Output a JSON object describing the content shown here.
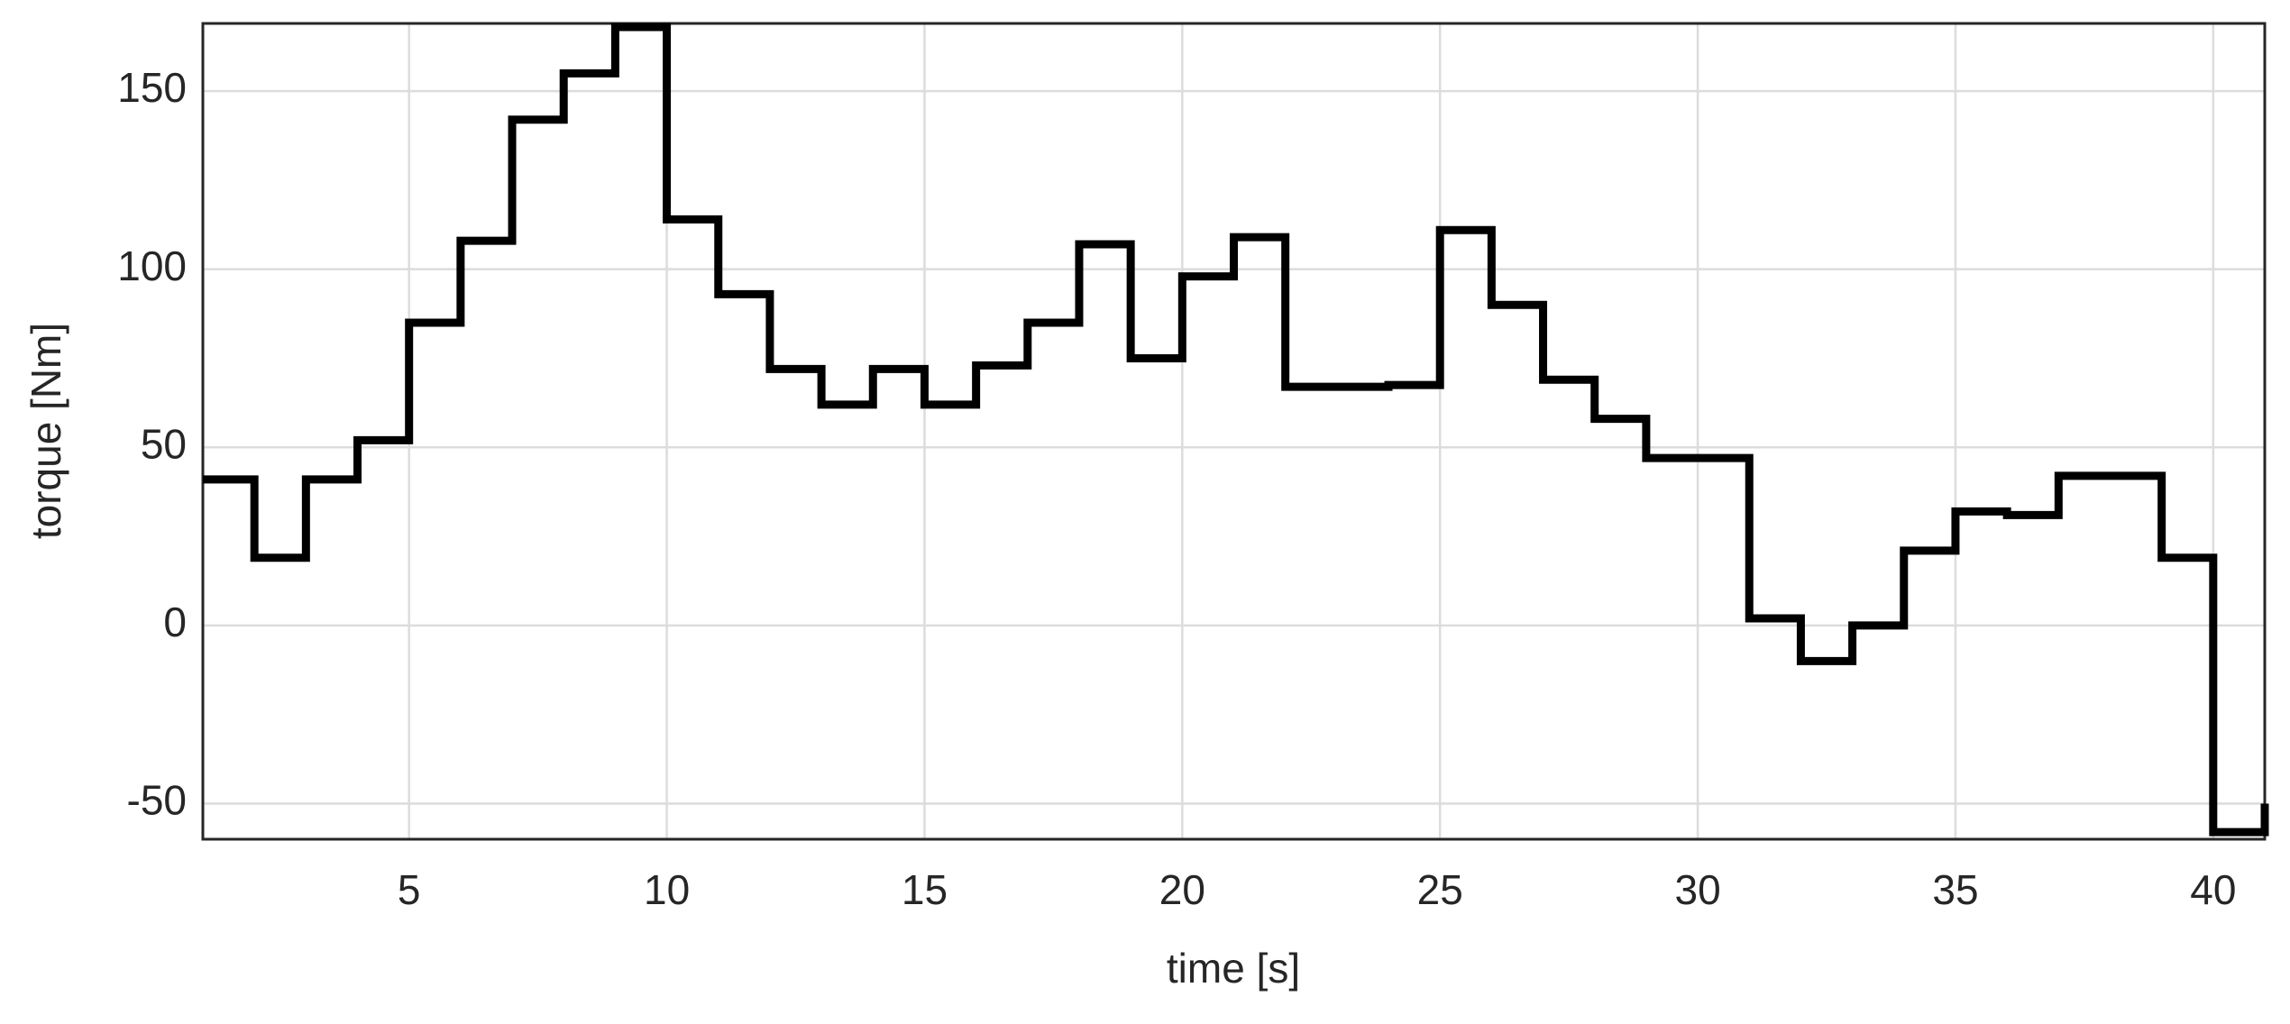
{
  "chart_data": {
    "type": "stairs",
    "xlabel": "time [s]",
    "ylabel": "torque [Nm]",
    "x": [
      1,
      2,
      3,
      4,
      5,
      6,
      7,
      8,
      9,
      10,
      11,
      12,
      13,
      14,
      15,
      16,
      17,
      18,
      19,
      20,
      21,
      22,
      23,
      24,
      25,
      26,
      27,
      28,
      29,
      30,
      31,
      32,
      33,
      34,
      35,
      36,
      37,
      38,
      39,
      40,
      41
    ],
    "series": [
      {
        "color": "#000000",
        "values": [
          41,
          19,
          41,
          52,
          85,
          108,
          142,
          155,
          168,
          114,
          93,
          72,
          62,
          72,
          62,
          73,
          85,
          107,
          75,
          98,
          109,
          67,
          67,
          67.5,
          111,
          90,
          69,
          58,
          47,
          47,
          2,
          -10,
          0,
          21,
          32,
          31,
          42,
          42,
          19,
          -58,
          -50
        ]
      }
    ],
    "xlim": [
      1,
      41
    ],
    "ylim": [
      -60,
      169
    ],
    "xticks": [
      5,
      10,
      15,
      20,
      25,
      30,
      35,
      40
    ],
    "yticks": [
      -50,
      0,
      50,
      100,
      150
    ],
    "grid": true
  }
}
